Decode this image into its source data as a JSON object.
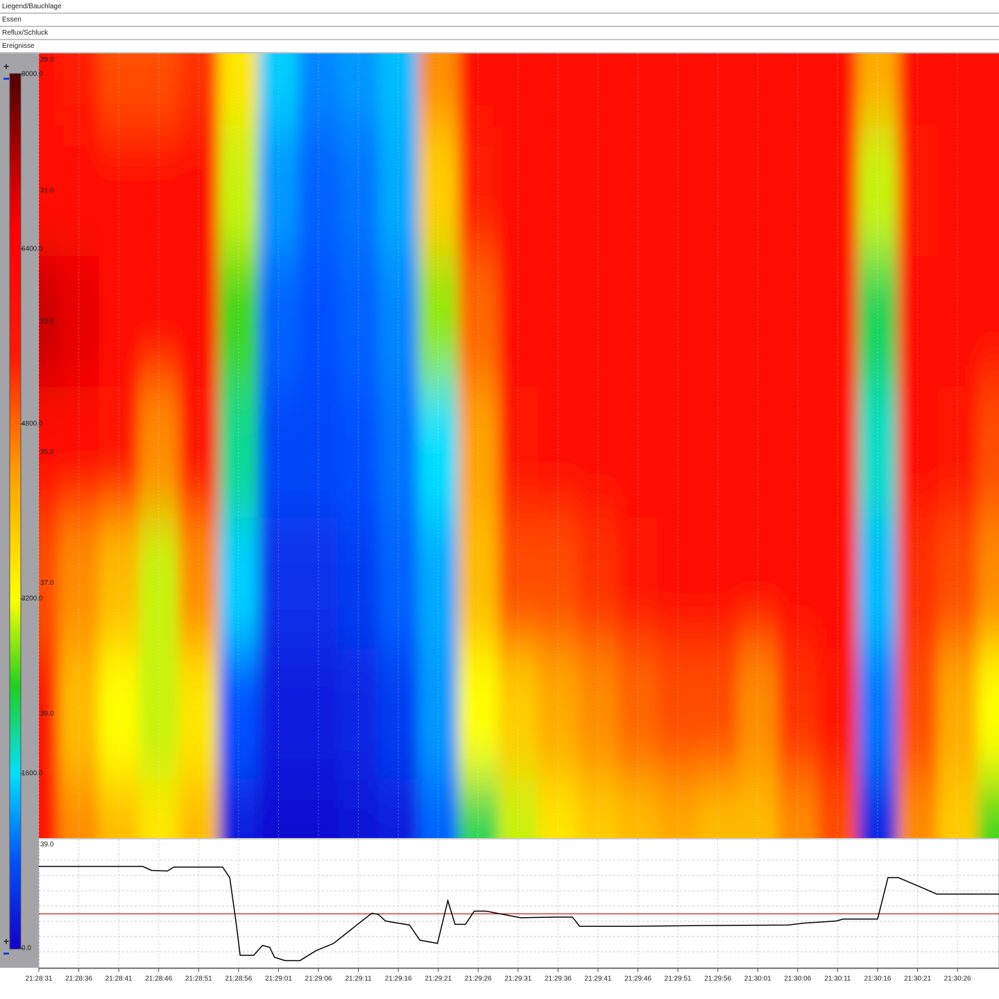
{
  "tracks": [
    "Liegend/Bauchlage",
    "Essen",
    "Reflux/Schluck",
    "Ereignisse"
  ],
  "chart_data": [
    {
      "type": "heatmap",
      "x": [
        0,
        5,
        10,
        15,
        20,
        25,
        30,
        35,
        40,
        45,
        50,
        55,
        60,
        65,
        70,
        75,
        80,
        85,
        90,
        95,
        100,
        105,
        110,
        115,
        120
      ],
      "y": [
        29,
        31,
        33,
        35,
        37,
        39,
        41
      ],
      "values": [
        [
          6000,
          6200,
          7000,
          6200,
          5000,
          5500,
          5500
        ],
        [
          5400,
          6000,
          6800,
          6000,
          4500,
          4000,
          4500
        ],
        [
          5000,
          6000,
          6200,
          5500,
          4000,
          3200,
          4000
        ],
        [
          5000,
          6000,
          6200,
          4500,
          3000,
          3000,
          3500
        ],
        [
          5200,
          6000,
          6000,
          5500,
          4500,
          3500,
          4000
        ],
        [
          3500,
          3000,
          2500,
          2000,
          1500,
          800,
          300
        ],
        [
          1500,
          1200,
          900,
          700,
          500,
          300,
          150
        ],
        [
          1100,
          900,
          800,
          700,
          500,
          300,
          150
        ],
        [
          1200,
          1000,
          900,
          800,
          600,
          400,
          200
        ],
        [
          1400,
          1300,
          1100,
          1000,
          900,
          600,
          300
        ],
        [
          4500,
          3800,
          2800,
          1600,
          1300,
          1200,
          900
        ],
        [
          6000,
          5400,
          4800,
          4300,
          4000,
          3200,
          2200
        ],
        [
          6200,
          6000,
          6000,
          5500,
          5000,
          3800,
          3000
        ],
        [
          6200,
          6200,
          6200,
          6000,
          5000,
          4200,
          3500
        ],
        [
          6200,
          6200,
          6300,
          6000,
          5200,
          4500,
          3800
        ],
        [
          6200,
          6200,
          6300,
          6000,
          5500,
          4800,
          4000
        ],
        [
          6200,
          6200,
          6200,
          6000,
          5800,
          5000,
          4200
        ],
        [
          6200,
          6200,
          6200,
          6000,
          6000,
          5000,
          4000
        ],
        [
          6200,
          6200,
          6200,
          6000,
          5800,
          4500,
          4000
        ],
        [
          6200,
          6200,
          6200,
          6000,
          6000,
          5200,
          4500
        ],
        [
          6200,
          6200,
          6200,
          6000,
          6000,
          5500,
          5000
        ],
        [
          4200,
          3000,
          2200,
          1800,
          1400,
          1000,
          400
        ],
        [
          6000,
          5500,
          6000,
          6000,
          5200,
          5000,
          4500
        ],
        [
          6200,
          5800,
          6000,
          5500,
          5000,
          4200,
          3800
        ],
        [
          6200,
          6200,
          6000,
          5000,
          4500,
          3200,
          2500
        ]
      ],
      "xlim": [
        0,
        120.2
      ],
      "ylim": [
        28.9,
        40.9
      ],
      "yticks": [
        {
          "value": 29,
          "label": "29.0"
        },
        {
          "value": 31,
          "label": "31.0"
        },
        {
          "value": 33,
          "label": "33.0"
        },
        {
          "value": 35,
          "label": "35.0"
        },
        {
          "value": 37,
          "label": "37.0"
        },
        {
          "value": 39,
          "label": "39.0"
        }
      ],
      "colorbar": {
        "lim": [
          0,
          8000
        ],
        "ticks": [
          {
            "value": 8000,
            "label": "8000.0"
          },
          {
            "value": 6400,
            "label": "6400.0"
          },
          {
            "value": 4800,
            "label": "4800.0"
          },
          {
            "value": 3200,
            "label": "3200.0"
          },
          {
            "value": 1600,
            "label": "1600.0"
          },
          {
            "value": 0,
            "label": "0.0"
          }
        ]
      },
      "colorscale": [
        [
          0,
          "#1400c8"
        ],
        [
          800,
          "#0050ff"
        ],
        [
          1600,
          "#00e0ff"
        ],
        [
          2400,
          "#20d020"
        ],
        [
          3200,
          "#ffff00"
        ],
        [
          4400,
          "#ff9900"
        ],
        [
          5400,
          "#ff1a00"
        ],
        [
          6600,
          "#ff0000"
        ],
        [
          8000,
          "#500000"
        ]
      ]
    },
    {
      "type": "line",
      "x": [
        0,
        13,
        14.1,
        16.1,
        16.9,
        23,
        23.9,
        24.7,
        25.2,
        26.9,
        28,
        28.9,
        29.5,
        30.8,
        32.7,
        34.7,
        36.9,
        39.8,
        41.7,
        42.5,
        43.4,
        46.4,
        47.7,
        49.9,
        51.2,
        52.1,
        53.4,
        54.5,
        56,
        60.3,
        64.7,
        66.8,
        67.7,
        74.2,
        82,
        93.8,
        95.9,
        99.8,
        100.7,
        105,
        106.3,
        107.6,
        110.7,
        112.4,
        120.2
      ],
      "values": [
        39.33,
        39.33,
        39.39,
        39.4,
        39.34,
        39.34,
        39.5,
        40.19,
        40.68,
        40.68,
        40.53,
        40.56,
        40.71,
        40.76,
        40.76,
        40.61,
        40.5,
        40.22,
        40.04,
        40.06,
        40.16,
        40.22,
        40.45,
        40.5,
        39.85,
        40.21,
        40.21,
        40.01,
        40.01,
        40.11,
        40.1,
        40.1,
        40.24,
        40.24,
        40.23,
        40.22,
        40.19,
        40.16,
        40.13,
        40.13,
        39.5,
        39.5,
        39.66,
        39.75,
        39.75
      ],
      "color": "#000000",
      "xlim": [
        0,
        120.2
      ],
      "ylim": [
        38.92,
        40.87
      ],
      "yticks": [
        {
          "value": 39,
          "label": "39.0"
        }
      ],
      "reference_line": {
        "value": 40.05,
        "color": "#cc0000"
      },
      "xticks": [
        {
          "value": 0,
          "label": "21:28:31"
        },
        {
          "value": 5,
          "label": "21:28:36"
        },
        {
          "value": 10,
          "label": "21:28:41"
        },
        {
          "value": 15,
          "label": "21:28:46"
        },
        {
          "value": 20,
          "label": "21:28:51"
        },
        {
          "value": 25,
          "label": "21:28:56"
        },
        {
          "value": 30,
          "label": "21:29:01"
        },
        {
          "value": 35,
          "label": "21:29:06"
        },
        {
          "value": 40,
          "label": "21:29:11"
        },
        {
          "value": 45,
          "label": "21:29:16"
        },
        {
          "value": 50,
          "label": "21:29:21"
        },
        {
          "value": 55,
          "label": "21:29:26"
        },
        {
          "value": 60,
          "label": "21:29:31"
        },
        {
          "value": 65,
          "label": "21:29:36"
        },
        {
          "value": 70,
          "label": "21:29:41"
        },
        {
          "value": 75,
          "label": "21:29:46"
        },
        {
          "value": 80,
          "label": "21:29:51"
        },
        {
          "value": 85,
          "label": "21:29:56"
        },
        {
          "value": 90,
          "label": "21:30:01"
        },
        {
          "value": 95,
          "label": "21:30:06"
        },
        {
          "value": 100,
          "label": "21:30:11"
        },
        {
          "value": 105,
          "label": "21:30:16"
        },
        {
          "value": 110,
          "label": "21:30:21"
        },
        {
          "value": 115,
          "label": "21:30:26"
        }
      ]
    }
  ]
}
